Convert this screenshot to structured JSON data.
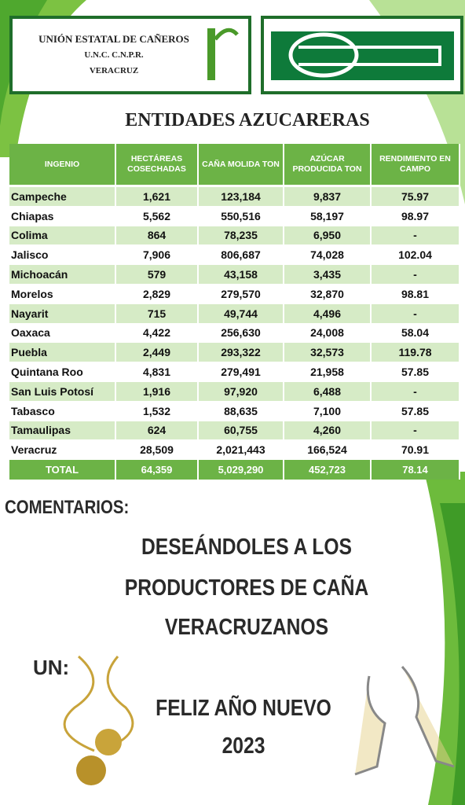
{
  "header": {
    "org_lines": [
      "UNIÓN ESTATAL DE CAÑEROS",
      "U.N.C. C.N.P.R.",
      "VERACRUZ"
    ]
  },
  "title": "ENTIDADES AZUCARERAS",
  "table": {
    "columns": [
      "INGENIO",
      "HECTÁREAS COSECHADAS",
      "CAÑA MOLIDA TON",
      "AZÚCAR PRODUCIDA TON",
      "RENDIMIENTO EN CAMPO"
    ],
    "rows": [
      [
        "Campeche",
        "1,621",
        "123,184",
        "9,837",
        "75.97"
      ],
      [
        "Chiapas",
        "5,562",
        "550,516",
        "58,197",
        "98.97"
      ],
      [
        "Colima",
        "864",
        "78,235",
        "6,950",
        "-"
      ],
      [
        "Jalisco",
        "7,906",
        "806,687",
        "74,028",
        "102.04"
      ],
      [
        "Michoacán",
        "579",
        "43,158",
        "3,435",
        "-"
      ],
      [
        "Morelos",
        "2,829",
        "279,570",
        "32,870",
        "98.81"
      ],
      [
        "Nayarit",
        "715",
        "49,744",
        "4,496",
        "-"
      ],
      [
        "Oaxaca",
        "4,422",
        "256,630",
        "24,008",
        "58.04"
      ],
      [
        "Puebla",
        "2,449",
        "293,322",
        "32,573",
        "119.78"
      ],
      [
        "Quintana Roo",
        "4,831",
        "279,491",
        "21,958",
        "57.85"
      ],
      [
        "San Luis Potosí",
        "1,916",
        "97,920",
        "6,488",
        "-"
      ],
      [
        "Tabasco",
        "1,532",
        "88,635",
        "7,100",
        "57.85"
      ],
      [
        "Tamaulipas",
        "624",
        "60,755",
        "4,260",
        "-"
      ],
      [
        "Veracruz",
        "28,509",
        "2,021,443",
        "166,524",
        "70.91"
      ]
    ],
    "total": [
      "TOTAL",
      "64,359",
      "5,029,290",
      "452,723",
      "78.14"
    ]
  },
  "comments": {
    "label": "COMENTARIOS:",
    "message": [
      "DESEÁNDOLES A LOS",
      "PRODUCTORES DE CAÑA",
      "VERACRUZANOS"
    ],
    "un": "UN:",
    "greeting": "FELIZ AÑO NUEVO",
    "year": "2023"
  }
}
